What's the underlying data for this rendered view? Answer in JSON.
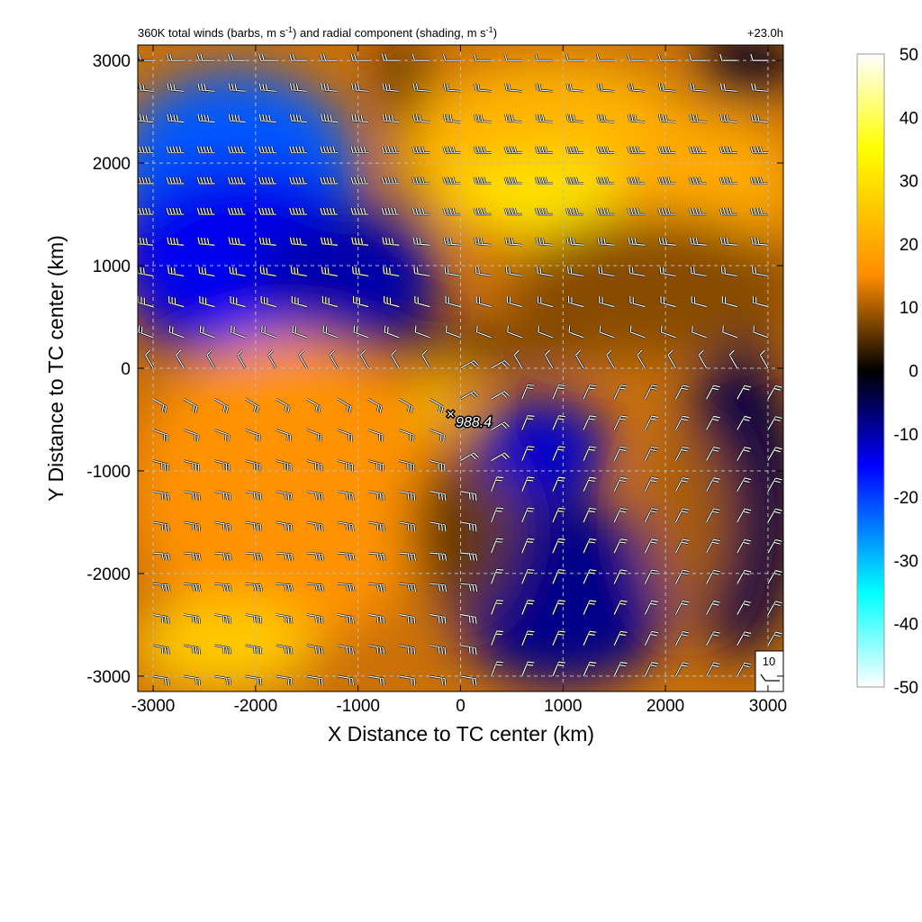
{
  "chart_data": {
    "type": "heatmap",
    "title_left_base": "360K total winds (barbs, m s",
    "title_left_mid": ") and radial component (shading, m s",
    "title_left_end": ")",
    "title_sup": "-1",
    "title_right": "+23.0h",
    "xlabel": "X Distance to TC center (km)",
    "ylabel": "Y Distance to TC center (km)",
    "xlim": [
      -3150,
      3150
    ],
    "ylim": [
      -3150,
      3150
    ],
    "x_ticks": [
      -3000,
      -2000,
      -1000,
      0,
      1000,
      2000,
      3000
    ],
    "y_ticks": [
      -3000,
      -2000,
      -1000,
      0,
      1000,
      2000,
      3000
    ],
    "grid": "dashed",
    "colorbar": {
      "min": -50,
      "max": 50,
      "ticks": [
        -50,
        -40,
        -30,
        -20,
        -10,
        0,
        10,
        20,
        30,
        40,
        50
      ],
      "colors": [
        "#ffffff",
        "#00ffff",
        "#0000ff",
        "#000000",
        "#ff8c00",
        "#ffff00",
        "#ffffff"
      ]
    },
    "center_marker": {
      "x": -100,
      "y": -430,
      "symbol": "×",
      "label": "988.4"
    },
    "reference_barb": {
      "label": "10",
      "speed": 10
    },
    "radial_wind_blobs": [
      {
        "x": -2250,
        "y": 1450,
        "rx": 1000,
        "ry": 480,
        "value": -50
      },
      {
        "x": -2200,
        "y": 1900,
        "rx": 1200,
        "ry": 1000,
        "value": -22
      },
      {
        "x": -2100,
        "y": 1100,
        "rx": 1300,
        "ry": 900,
        "value": -14
      },
      {
        "x": -1100,
        "y": 900,
        "rx": 900,
        "ry": 600,
        "value": -10
      },
      {
        "x": 900,
        "y": 2100,
        "rx": 1500,
        "ry": 900,
        "value": 22
      },
      {
        "x": 900,
        "y": 1700,
        "rx": 1000,
        "ry": 400,
        "value": 30
      },
      {
        "x": 2400,
        "y": 1800,
        "rx": 900,
        "ry": 700,
        "value": 20
      },
      {
        "x": 2800,
        "y": 2950,
        "rx": 500,
        "ry": 350,
        "value": -2
      },
      {
        "x": 1900,
        "y": 800,
        "rx": 1400,
        "ry": 700,
        "value": 8
      },
      {
        "x": -1700,
        "y": -1200,
        "rx": 1500,
        "ry": 1500,
        "value": 16
      },
      {
        "x": -2300,
        "y": -2700,
        "rx": 900,
        "ry": 450,
        "value": 26
      },
      {
        "x": -200,
        "y": -330,
        "rx": 220,
        "ry": 220,
        "value": 28
      },
      {
        "x": 800,
        "y": -800,
        "rx": 650,
        "ry": 500,
        "value": -12
      },
      {
        "x": 1000,
        "y": -2200,
        "rx": 1100,
        "ry": 900,
        "value": -8
      },
      {
        "x": 2700,
        "y": -1300,
        "rx": 600,
        "ry": 1500,
        "value": -4
      },
      {
        "x": 2200,
        "y": -1500,
        "rx": 400,
        "ry": 900,
        "value": 10
      },
      {
        "x": 0,
        "y": -1600,
        "rx": 500,
        "ry": 800,
        "value": 6
      }
    ],
    "wind_barbs": [
      {
        "y": 3000,
        "dir": 270,
        "speed": 20
      },
      {
        "y": 2700,
        "dir": 275,
        "speed": 30
      },
      {
        "y": 2400,
        "dir": 275,
        "speed": 35
      },
      {
        "y": 2100,
        "dir": 270,
        "speed": 45
      },
      {
        "y": 1800,
        "dir": 270,
        "speed": 50
      },
      {
        "y": 1500,
        "dir": 270,
        "speed": 45
      },
      {
        "y": 1200,
        "dir": 275,
        "speed": 40
      },
      {
        "y": 900,
        "dir": 280,
        "speed": 30
      },
      {
        "y": 600,
        "dir": 285,
        "speed": 25
      },
      {
        "y": 300,
        "dir": 290,
        "speed": 15
      },
      {
        "y": 0,
        "dir": 330,
        "speed": 10
      },
      {
        "y": -300,
        "dir": 120,
        "speed": 15
      },
      {
        "y": -600,
        "dir": 110,
        "speed": 20
      },
      {
        "y": -900,
        "dir": 105,
        "speed": 25
      },
      {
        "y": -1200,
        "dir": 100,
        "speed": 25
      },
      {
        "y": -1500,
        "dir": 100,
        "speed": 25
      },
      {
        "y": -1800,
        "dir": 95,
        "speed": 25
      },
      {
        "y": -2100,
        "dir": 95,
        "speed": 25
      },
      {
        "y": -2400,
        "dir": 100,
        "speed": 25
      },
      {
        "y": -2700,
        "dir": 100,
        "speed": 25
      },
      {
        "y": -3000,
        "dir": 100,
        "speed": 20
      }
    ]
  }
}
